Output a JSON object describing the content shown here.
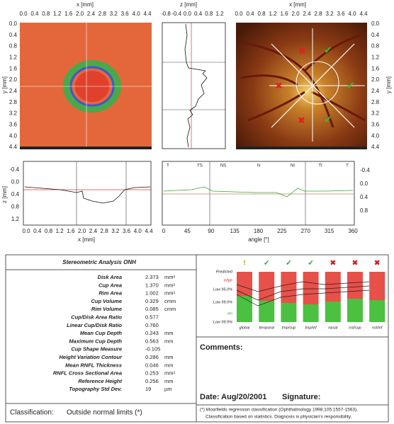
{
  "top_left": {
    "x_label": "x [mm]",
    "y_label": "y [mm]",
    "x_ticks": [
      "0.0",
      "0.4",
      "0.8",
      "1.2",
      "1.6",
      "2.0",
      "2.4",
      "2.8",
      "3.2",
      "3.6",
      "4.0",
      "4.4"
    ],
    "y_ticks": [
      "0.0",
      "0.4",
      "0.8",
      "1.2",
      "1.6",
      "2.0",
      "2.4",
      "2.8",
      "3.2",
      "3.6",
      "4.0",
      "4.4"
    ]
  },
  "profile": {
    "z_label": "z [mm]",
    "z_ticks": [
      "-0.8",
      "-0.4",
      "0.0",
      "0.4",
      "0.8",
      "1.2"
    ]
  },
  "top_right": {
    "x_label": "x [mm]",
    "y_label": "y [mm]",
    "x_ticks": [
      "0.0",
      "0.4",
      "0.8",
      "1.2",
      "1.6",
      "2.0",
      "2.4",
      "2.8",
      "3.2",
      "3.6",
      "4.0",
      "4.4"
    ],
    "y_ticks": [
      "0.0",
      "0.4",
      "0.8",
      "1.2",
      "1.6",
      "2.0",
      "2.4",
      "2.8",
      "3.2",
      "3.6",
      "4.0",
      "4.4"
    ]
  },
  "bottom_left": {
    "z_label": "z [mm]",
    "x_label": "x [mm]",
    "z_ticks": [
      "-0.4",
      "0.0",
      "0.4",
      "0.8",
      "1.2"
    ],
    "x_ticks": [
      "0.0",
      "0.4",
      "0.8",
      "1.2",
      "1.6",
      "2.0",
      "2.4",
      "2.8",
      "3.2",
      "3.6",
      "4.0",
      "4.4"
    ]
  },
  "bottom_right": {
    "x_label": "angle [°]",
    "angle_ticks": [
      "0",
      "45",
      "90",
      "135",
      "180",
      "225",
      "270",
      "315",
      "360"
    ],
    "z_ticks": [
      "-0.4",
      "0.0",
      "0.4",
      "0.8"
    ],
    "sectors": [
      "T",
      "TS",
      "NS",
      "N",
      "NI",
      "TI",
      "T"
    ]
  },
  "analysis": {
    "title": "Stereometric Analysis ONH",
    "rows": [
      [
        "Disk Area",
        "2.373",
        "mm²"
      ],
      [
        "Cup Area",
        "1.370",
        "mm²"
      ],
      [
        "Rim Area",
        "1.002",
        "mm²"
      ],
      [
        "Cup Volume",
        "0.329",
        "cmm"
      ],
      [
        "Rim Volume",
        "0.085",
        "cmm"
      ],
      [
        "Cup/Disk Area Ratio",
        "0.577",
        ""
      ],
      [
        "Linear Cup/Disk Ratio",
        "0.760",
        ""
      ],
      [
        "Mean Cup Depth",
        "0.243",
        "mm"
      ],
      [
        "Maximum Cup Depth",
        "0.563",
        "mm"
      ],
      [
        "Cup Shape Measure",
        "-0.105",
        ""
      ],
      [
        "Height Variation Contour",
        "0.286",
        "mm"
      ],
      [
        "Mean RNFL Thickness",
        "0.046",
        "mm"
      ],
      [
        "RNFL Cross Sectional Area",
        "0.253",
        "mm²"
      ],
      [
        "Reference Height",
        "0.256",
        "mm"
      ],
      [
        "Topography Std Dev.",
        "19",
        "µm"
      ]
    ]
  },
  "classification": {
    "label": "Classification:",
    "value": "Outside normal limits (*)"
  },
  "moorfields": {
    "levels": [
      "Predicted",
      "edge",
      "Low 95.0%",
      "Low 99.0%",
      "rim",
      "Low 99.9%"
    ],
    "sectors": [
      "global",
      "temporal",
      "tmp/sup",
      "tmp/inf",
      "nasal",
      "nsl/sup",
      "nsl/inf"
    ],
    "status": [
      "!",
      "✓",
      "✓",
      "✓",
      "✖",
      "✖",
      "✖"
    ]
  },
  "comments": "Comments:",
  "date": "Date: Aug/20/2001",
  "signature": "Signature:",
  "footnote": [
    "(*) Moorfields regression classification (Ophthalmology 1998;105:1557-1563).",
    "Classification based on statistics. Diagnosis is physician's responsibility."
  ]
}
